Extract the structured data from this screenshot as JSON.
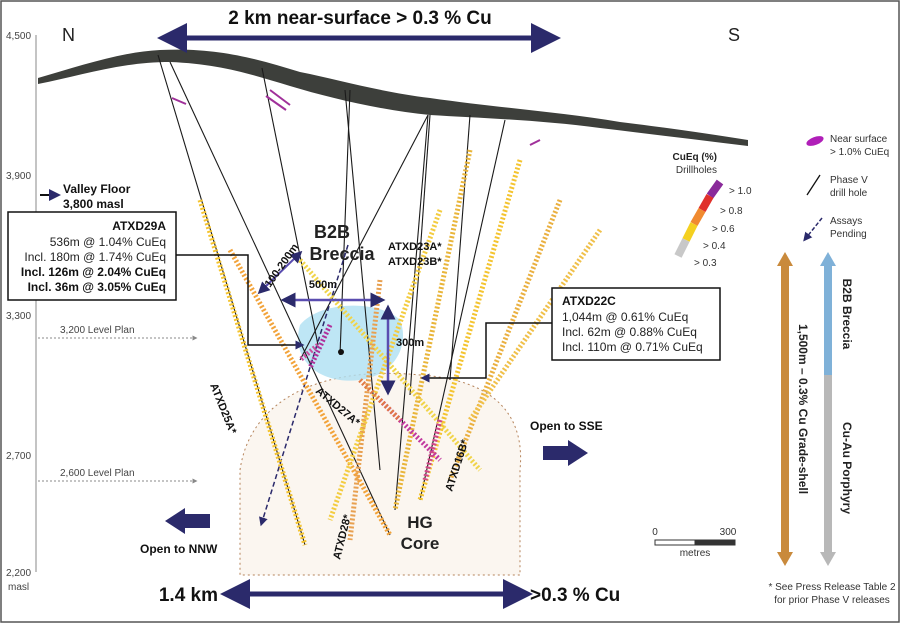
{
  "header": {
    "title": "2 km near-surface > 0.3 % Cu"
  },
  "compass": {
    "north": "N",
    "south": "S"
  },
  "elevation_axis": {
    "ticks": [
      "4,500",
      "3,900",
      "3,300",
      "2,700",
      "2,200"
    ],
    "unit": "masl"
  },
  "valley_floor": {
    "label": "Valley Floor",
    "value": "3,800 masl"
  },
  "level_plans": [
    "3,200 Level Plan",
    "2,600 Level Plan"
  ],
  "callouts": [
    {
      "title": "ATXD29A",
      "lines": [
        "536m @ 1.04% CuEq",
        "Incl. 180m @ 1.74% CuEq",
        "Incl. 126m @ 2.04% CuEq",
        "Incl. 36m @ 3.05% CuEq"
      ]
    },
    {
      "title": "ATXD22C",
      "lines": [
        "1,044m @ 0.61% CuEq",
        "Incl. 62m @ 0.88% CuEq",
        "Incl. 110m @ 0.71% CuEq"
      ]
    }
  ],
  "zones": {
    "b2b": "B2B",
    "breccia": "Breccia",
    "hg": "HG",
    "core": "Core"
  },
  "dimensions": [
    "100-200m",
    "500m",
    "300m"
  ],
  "drillholes": [
    "ATXD23A*",
    "ATXD23B*",
    "ATXD25A*",
    "ATXD27A*",
    "ATXD28*",
    "ATXD16B*"
  ],
  "open": {
    "sse": "Open to SSE",
    "nnw": "Open to NNW"
  },
  "cueq_legend": {
    "title": "CuEq (%)",
    "subtitle": "Drillholes",
    "classes": [
      "> 1.0",
      "> 0.8",
      "> 0.6",
      "> 0.4",
      "> 0.3"
    ]
  },
  "legend": {
    "near_surface": [
      "Near surface",
      "> 1.0% CuEq"
    ],
    "phase_v": [
      "Phase V",
      "drill hole"
    ],
    "assays": [
      "Assays",
      "Pending"
    ]
  },
  "grade_shell": {
    "breccia": "B2B Breccia",
    "porphyry": "Cu-Au Porphyry",
    "shell": "1,500m – 0.3% Cu Grade-shell"
  },
  "scale": {
    "start": "0",
    "end": "300",
    "unit": "metres"
  },
  "bottom": {
    "width": "1.4 km",
    "grade": ">0.3 % Cu"
  },
  "footnote": [
    "* See Press Release Table 2",
    "for prior Phase V releases"
  ]
}
